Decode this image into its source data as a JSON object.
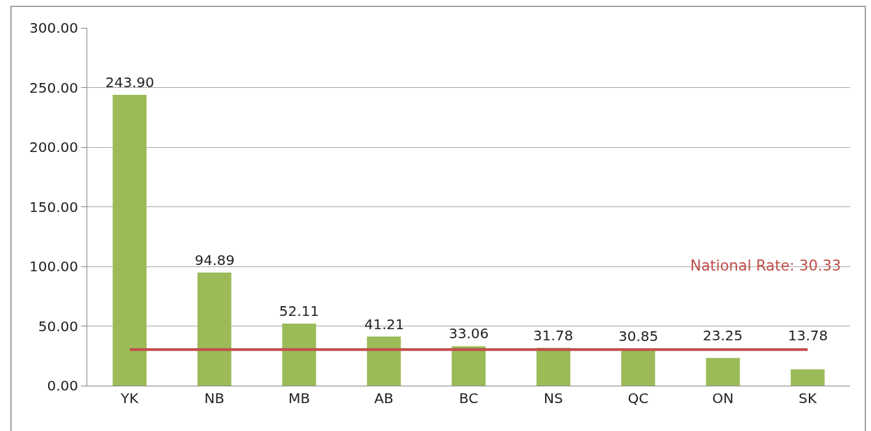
{
  "chart_data": {
    "type": "bar",
    "categories": [
      "YK",
      "NB",
      "MB",
      "AB",
      "BC",
      "NS",
      "QC",
      "ON",
      "SK"
    ],
    "values": [
      243.9,
      94.89,
      52.11,
      41.21,
      33.06,
      31.78,
      30.85,
      23.25,
      13.78
    ],
    "value_labels": [
      "243.90",
      "94.89",
      "52.11",
      "41.21",
      "33.06",
      "31.78",
      "30.85",
      "23.25",
      "13.78"
    ],
    "color": "#9bbb59",
    "ylim": [
      0,
      300
    ],
    "yticks": [
      {
        "value": 0,
        "label": "0.00"
      },
      {
        "value": 50,
        "label": "50.00"
      },
      {
        "value": 100,
        "label": "100.00"
      },
      {
        "value": 150,
        "label": "150.00"
      },
      {
        "value": 200,
        "label": "200.00"
      },
      {
        "value": 250,
        "label": "250.00"
      },
      {
        "value": 300,
        "label": "300.00"
      }
    ],
    "grid": "y",
    "legend": false,
    "ref_lines": [
      {
        "axis": "y",
        "value": 30.33,
        "label": "National Rate: 30.33",
        "color": "#c0504d",
        "line_style": "solid"
      }
    ]
  }
}
